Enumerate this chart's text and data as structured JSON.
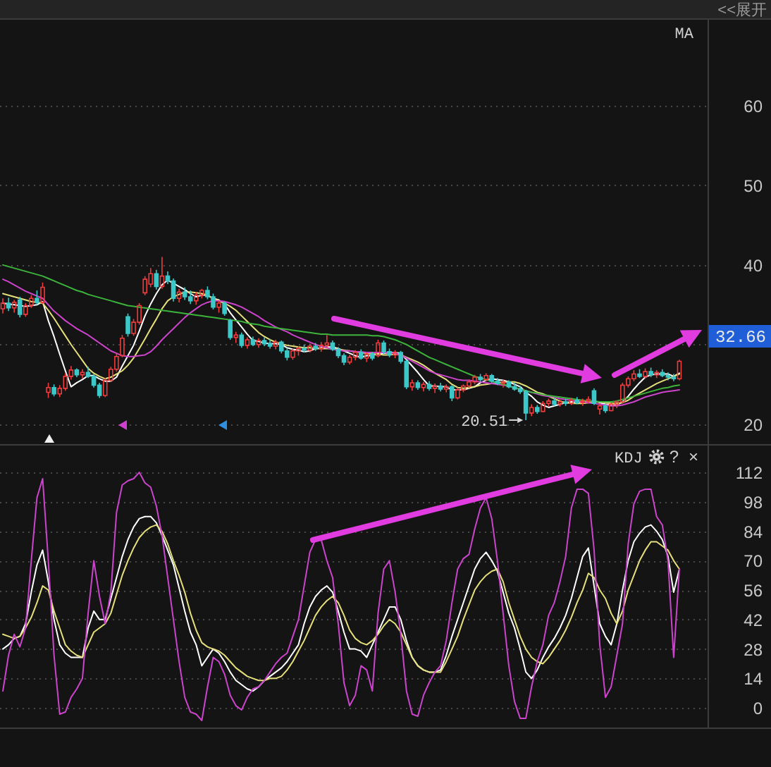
{
  "chart_data": [
    {
      "type": "candlestick",
      "title": "MA",
      "categories": [
        null,
        null,
        null,
        null,
        null,
        null,
        null,
        null,
        null,
        null,
        null,
        null,
        null,
        null,
        null,
        null,
        null,
        null,
        null,
        null,
        null,
        null,
        null,
        null,
        null,
        null,
        null,
        null,
        null,
        null,
        null,
        null,
        null,
        null,
        null,
        null,
        null,
        null,
        null,
        null,
        null,
        null,
        null,
        null,
        null,
        null,
        null,
        null,
        null,
        null,
        null,
        null,
        null,
        null,
        null,
        null,
        null,
        null,
        null,
        null,
        null,
        null,
        null,
        null,
        null,
        null,
        null,
        null,
        null,
        null,
        null,
        null,
        null,
        null,
        null,
        null,
        null,
        null,
        null,
        null,
        null,
        null,
        null,
        null,
        null,
        null,
        null,
        null,
        null,
        null,
        null,
        null,
        null,
        null,
        null,
        null,
        null,
        null,
        null,
        null,
        null,
        null,
        null,
        null,
        null,
        null,
        null,
        null,
        null,
        null,
        null,
        null,
        null,
        null,
        null,
        null,
        null,
        null,
        null,
        null
      ],
      "ohlc": [
        [
          34.5,
          35.8,
          33.9,
          35.2
        ],
        [
          35.2,
          35.9,
          34.2,
          34.6
        ],
        [
          34.6,
          35.6,
          34.0,
          35.3
        ],
        [
          35.6,
          36.0,
          33.4,
          33.8
        ],
        [
          33.8,
          35.2,
          33.5,
          34.9
        ],
        [
          34.9,
          36.2,
          34.6,
          35.8
        ],
        [
          35.8,
          36.8,
          35.0,
          35.3
        ],
        [
          35.3,
          37.8,
          35.1,
          37.2
        ],
        [
          24.0,
          25.2,
          23.3,
          24.6
        ],
        [
          24.6,
          25.0,
          23.5,
          23.8
        ],
        [
          23.8,
          24.9,
          23.4,
          24.5
        ],
        [
          24.5,
          26.4,
          24.2,
          26.0
        ],
        [
          26.0,
          27.3,
          25.6,
          26.8
        ],
        [
          26.8,
          27.0,
          25.9,
          26.2
        ],
        [
          26.2,
          26.9,
          25.7,
          26.5
        ],
        [
          26.5,
          27.2,
          25.8,
          26.0
        ],
        [
          26.0,
          26.3,
          24.6,
          24.9
        ],
        [
          24.9,
          25.2,
          23.3,
          23.6
        ],
        [
          23.6,
          25.8,
          23.4,
          25.5
        ],
        [
          25.5,
          27.2,
          25.3,
          26.9
        ],
        [
          26.9,
          28.9,
          26.6,
          28.5
        ],
        [
          28.6,
          31.2,
          28.4,
          30.8
        ],
        [
          33.5,
          33.9,
          31.0,
          31.4
        ],
        [
          31.4,
          33.2,
          31.1,
          32.8
        ],
        [
          32.8,
          35.2,
          32.5,
          34.9
        ],
        [
          36.5,
          38.6,
          36.2,
          38.2
        ],
        [
          37.6,
          39.6,
          37.2,
          38.9
        ],
        [
          38.9,
          39.4,
          36.9,
          37.3
        ],
        [
          37.3,
          41.0,
          37.0,
          38.6
        ],
        [
          38.6,
          39.2,
          37.6,
          38.0
        ],
        [
          38.0,
          38.3,
          35.4,
          35.8
        ],
        [
          35.8,
          37.0,
          35.3,
          36.6
        ],
        [
          36.6,
          37.2,
          35.6,
          36.0
        ],
        [
          36.0,
          36.8,
          35.1,
          35.5
        ],
        [
          35.5,
          36.6,
          35.0,
          36.2
        ],
        [
          36.2,
          37.0,
          35.8,
          36.8
        ],
        [
          36.8,
          37.3,
          35.7,
          36.0
        ],
        [
          36.0,
          36.4,
          34.4,
          34.7
        ],
        [
          34.7,
          35.5,
          34.0,
          35.2
        ],
        [
          35.2,
          35.4,
          33.6,
          33.9
        ],
        [
          33.0,
          33.2,
          30.6,
          30.9
        ],
        [
          30.9,
          31.6,
          30.2,
          31.2
        ],
        [
          31.2,
          31.5,
          29.6,
          29.9
        ],
        [
          29.9,
          30.9,
          29.5,
          30.6
        ],
        [
          30.6,
          31.0,
          29.8,
          30.0
        ],
        [
          30.0,
          30.8,
          29.6,
          30.5
        ],
        [
          30.5,
          30.9,
          29.8,
          30.1
        ],
        [
          30.1,
          30.7,
          29.5,
          29.8
        ],
        [
          29.8,
          30.6,
          29.4,
          30.3
        ],
        [
          30.3,
          30.5,
          28.9,
          29.2
        ],
        [
          29.2,
          29.6,
          28.0,
          28.4
        ],
        [
          28.4,
          29.5,
          28.1,
          29.2
        ],
        [
          29.2,
          29.8,
          28.6,
          29.5
        ],
        [
          29.5,
          30.0,
          29.0,
          29.3
        ],
        [
          29.3,
          30.1,
          29.0,
          29.8
        ],
        [
          29.8,
          30.2,
          29.2,
          29.5
        ],
        [
          29.5,
          30.3,
          29.1,
          29.9
        ],
        [
          29.9,
          31.2,
          29.6,
          30.2
        ],
        [
          30.2,
          30.5,
          29.2,
          29.4
        ],
        [
          29.4,
          29.7,
          28.3,
          28.6
        ],
        [
          28.6,
          28.9,
          27.4,
          27.8
        ],
        [
          27.8,
          28.7,
          27.5,
          28.4
        ],
        [
          28.4,
          29.3,
          28.0,
          29.0
        ],
        [
          29.0,
          29.4,
          28.1,
          28.3
        ],
        [
          28.3,
          29.0,
          27.8,
          28.8
        ],
        [
          28.8,
          29.1,
          28.0,
          28.3
        ],
        [
          28.6,
          30.6,
          28.4,
          30.2
        ],
        [
          30.2,
          30.5,
          28.8,
          29.1
        ],
        [
          29.1,
          29.5,
          28.4,
          28.7
        ],
        [
          28.7,
          29.3,
          28.3,
          29.0
        ],
        [
          29.0,
          29.2,
          27.6,
          27.9
        ],
        [
          27.9,
          28.1,
          24.4,
          24.7
        ],
        [
          24.7,
          25.6,
          24.2,
          25.2
        ],
        [
          25.2,
          25.5,
          24.3,
          24.6
        ],
        [
          24.6,
          25.3,
          24.1,
          25.0
        ],
        [
          25.0,
          25.4,
          24.2,
          24.5
        ],
        [
          24.5,
          25.1,
          23.9,
          24.8
        ],
        [
          24.8,
          25.2,
          24.1,
          24.4
        ],
        [
          24.4,
          25.0,
          24.0,
          24.7
        ],
        [
          24.7,
          24.9,
          22.9,
          23.3
        ],
        [
          23.3,
          24.6,
          23.1,
          24.3
        ],
        [
          24.3,
          25.0,
          24.0,
          24.8
        ],
        [
          24.8,
          25.6,
          24.5,
          25.3
        ],
        [
          25.3,
          26.2,
          25.0,
          25.9
        ],
        [
          25.9,
          26.3,
          25.3,
          25.6
        ],
        [
          25.6,
          26.4,
          25.4,
          26.1
        ],
        [
          26.1,
          26.3,
          25.2,
          25.4
        ],
        [
          25.4,
          25.8,
          24.9,
          25.1
        ],
        [
          25.1,
          25.6,
          24.6,
          25.3
        ],
        [
          25.3,
          25.5,
          24.5,
          24.7
        ],
        [
          24.7,
          25.2,
          24.2,
          24.4
        ],
        [
          24.4,
          24.8,
          23.8,
          24.1
        ],
        [
          24.1,
          24.3,
          20.51,
          21.4
        ],
        [
          21.4,
          22.5,
          21.0,
          22.1
        ],
        [
          22.1,
          22.4,
          21.3,
          21.6
        ],
        [
          21.6,
          22.9,
          21.5,
          22.6
        ],
        [
          22.6,
          23.2,
          22.2,
          22.9
        ],
        [
          22.9,
          23.3,
          22.3,
          22.5
        ],
        [
          22.5,
          23.1,
          22.2,
          22.8
        ],
        [
          22.8,
          23.2,
          22.3,
          22.6
        ],
        [
          22.6,
          23.3,
          22.4,
          23.0
        ],
        [
          23.0,
          23.4,
          22.5,
          22.7
        ],
        [
          22.7,
          23.2,
          22.3,
          22.9
        ],
        [
          22.9,
          23.5,
          22.6,
          23.1
        ],
        [
          24.2,
          24.5,
          22.4,
          22.6
        ],
        [
          21.9,
          22.6,
          21.2,
          22.3
        ],
        [
          22.3,
          22.6,
          21.4,
          21.7
        ],
        [
          21.7,
          22.7,
          21.6,
          22.5
        ],
        [
          22.5,
          23.0,
          22.0,
          22.8
        ],
        [
          22.8,
          25.2,
          22.6,
          24.9
        ],
        [
          24.9,
          26.0,
          24.6,
          25.7
        ],
        [
          25.7,
          26.8,
          25.4,
          26.3
        ],
        [
          26.3,
          26.9,
          25.8,
          26.0
        ],
        [
          26.0,
          27.0,
          25.7,
          26.6
        ],
        [
          26.6,
          27.1,
          25.9,
          26.2
        ],
        [
          26.2,
          26.8,
          25.8,
          26.5
        ],
        [
          26.5,
          26.9,
          25.9,
          26.1
        ],
        [
          26.1,
          26.5,
          25.5,
          25.9
        ],
        [
          25.9,
          26.3,
          25.4,
          25.7
        ],
        [
          25.7,
          28.1,
          25.5,
          27.9
        ]
      ],
      "colors": [
        "#f03c3c",
        "#3cc8c8",
        "#f03c3c",
        "#3cc8c8",
        "#f03c3c",
        "#f03c3c",
        "#3cc8c8",
        "#f03c3c",
        "#f03c3c",
        "#3cc8c8",
        "#f03c3c",
        "#f03c3c",
        "#f03c3c",
        "#3cc8c8",
        "#f03c3c",
        "#3cc8c8",
        "#3cc8c8",
        "#3cc8c8",
        "#f03c3c",
        "#f03c3c",
        "#f03c3c",
        "#f03c3c",
        "#3cc8c8",
        "#f03c3c",
        "#f03c3c",
        "#f03c3c",
        "#f03c3c",
        "#3cc8c8",
        "#f03c3c",
        "#3cc8c8",
        "#3cc8c8",
        "#f03c3c",
        "#3cc8c8",
        "#3cc8c8",
        "#f03c3c",
        "#f03c3c",
        "#3cc8c8",
        "#3cc8c8",
        "#f03c3c",
        "#3cc8c8",
        "#3cc8c8",
        "#f03c3c",
        "#3cc8c8",
        "#f03c3c",
        "#3cc8c8",
        "#f03c3c",
        "#3cc8c8",
        "#3cc8c8",
        "#f03c3c",
        "#3cc8c8",
        "#3cc8c8",
        "#f03c3c",
        "#f03c3c",
        "#3cc8c8",
        "#f03c3c",
        "#3cc8c8",
        "#f03c3c",
        "#f03c3c",
        "#3cc8c8",
        "#3cc8c8",
        "#3cc8c8",
        "#f03c3c",
        "#f03c3c",
        "#3cc8c8",
        "#f03c3c",
        "#3cc8c8",
        "#f03c3c",
        "#3cc8c8",
        "#3cc8c8",
        "#f03c3c",
        "#3cc8c8",
        "#3cc8c8",
        "#f03c3c",
        "#3cc8c8",
        "#f03c3c",
        "#3cc8c8",
        "#f03c3c",
        "#3cc8c8",
        "#f03c3c",
        "#3cc8c8",
        "#f03c3c",
        "#f03c3c",
        "#f03c3c",
        "#f03c3c",
        "#3cc8c8",
        "#f03c3c",
        "#3cc8c8",
        "#3cc8c8",
        "#f03c3c",
        "#3cc8c8",
        "#3cc8c8",
        "#3cc8c8",
        "#3cc8c8",
        "#f03c3c",
        "#3cc8c8",
        "#f03c3c",
        "#f03c3c",
        "#3cc8c8",
        "#f03c3c",
        "#3cc8c8",
        "#f03c3c",
        "#3cc8c8",
        "#f03c3c",
        "#f03c3c",
        "#3cc8c8",
        "#f03c3c",
        "#3cc8c8",
        "#f03c3c",
        "#f03c3c",
        "#f03c3c",
        "#f03c3c",
        "#f03c3c",
        "#3cc8c8",
        "#f03c3c",
        "#3cc8c8",
        "#f03c3c",
        "#3cc8c8",
        "#3cc8c8",
        "#3cc8c8",
        "#f03c3c"
      ],
      "series": [
        {
          "type": "line",
          "color": "#ffffff",
          "values": [
            35.2,
            35.1,
            35.0,
            34.9,
            34.8,
            34.9,
            35.0,
            35.4,
            33.0,
            31.0,
            28.8,
            26.7,
            24.7,
            25.2,
            25.6,
            26.1,
            26.1,
            25.7,
            25.4,
            25.4,
            25.9,
            27.3,
            28.6,
            29.9,
            31.7,
            33.6,
            35.1,
            36.4,
            37.5,
            38.1,
            37.7,
            37.3,
            36.9,
            36.4,
            36.0,
            36.2,
            36.2,
            35.8,
            35.6,
            35.1,
            34.0,
            33.1,
            32.2,
            31.3,
            30.5,
            30.4,
            30.2,
            30.1,
            30.1,
            30.0,
            29.6,
            29.4,
            29.3,
            29.1,
            29.2,
            29.5,
            29.6,
            29.7,
            29.7,
            29.5,
            29.2,
            28.9,
            28.6,
            28.4,
            28.6,
            28.6,
            28.9,
            28.9,
            29.0,
            29.0,
            28.9,
            28.1,
            27.3,
            26.5,
            25.6,
            24.8,
            24.8,
            24.7,
            24.7,
            24.3,
            24.3,
            24.3,
            24.5,
            24.7,
            25.2,
            25.5,
            25.7,
            25.6,
            25.5,
            25.3,
            25.0,
            24.7,
            24.0,
            23.5,
            22.8,
            22.4,
            22.1,
            22.3,
            22.5,
            22.7,
            22.8,
            22.7,
            22.8,
            22.9,
            22.9,
            22.7,
            22.5,
            22.4,
            22.4,
            22.8,
            23.5,
            24.4,
            25.2,
            25.9,
            26.2,
            26.3,
            26.3,
            26.3,
            26.0,
            26.4
          ]
        },
        {
          "type": "line",
          "color": "#e6e07c",
          "values": [
            36.4,
            36.2,
            36.0,
            35.8,
            35.6,
            35.4,
            35.3,
            35.2,
            34.3,
            33.3,
            32.2,
            31.1,
            30.0,
            29.0,
            28.0,
            27.0,
            26.4,
            26.0,
            25.7,
            25.9,
            26.3,
            26.7,
            27.4,
            28.3,
            29.5,
            30.7,
            32.0,
            33.2,
            34.5,
            35.5,
            36.0,
            36.3,
            36.6,
            36.6,
            36.5,
            36.4,
            36.2,
            35.8,
            35.5,
            35.2,
            34.8,
            34.3,
            33.6,
            32.9,
            32.2,
            31.5,
            31.0,
            30.6,
            30.3,
            30.1,
            29.9,
            29.8,
            29.7,
            29.6,
            29.6,
            29.5,
            29.5,
            29.5,
            29.5,
            29.4,
            29.3,
            29.2,
            29.1,
            29.0,
            28.9,
            28.8,
            28.8,
            28.7,
            28.7,
            28.8,
            28.7,
            28.4,
            28.1,
            27.8,
            27.4,
            26.9,
            26.4,
            26.0,
            25.6,
            25.0,
            24.6,
            24.5,
            24.6,
            24.7,
            24.9,
            25.0,
            25.1,
            25.2,
            25.3,
            25.3,
            25.3,
            25.1,
            24.8,
            24.4,
            24.0,
            23.8,
            23.5,
            23.2,
            22.9,
            22.7,
            22.6,
            22.6,
            22.6,
            22.7,
            22.8,
            22.8,
            22.7,
            22.6,
            22.6,
            22.7,
            23.0,
            23.5,
            23.9,
            24.3,
            24.7,
            25.1,
            25.4,
            25.7,
            26.0,
            26.3
          ]
        },
        {
          "type": "line",
          "color": "#cc44cc",
          "values": [
            38.2,
            37.9,
            37.5,
            37.1,
            36.7,
            36.4,
            36.1,
            35.8,
            35.0,
            34.2,
            33.6,
            33.0,
            32.5,
            32.0,
            31.6,
            31.2,
            30.7,
            30.2,
            29.7,
            29.2,
            28.9,
            28.6,
            28.5,
            28.5,
            28.6,
            28.7,
            29.1,
            29.8,
            30.6,
            31.3,
            32.0,
            32.7,
            33.4,
            34.0,
            34.5,
            35.0,
            35.3,
            35.5,
            35.5,
            35.4,
            35.2,
            35.0,
            34.7,
            34.3,
            33.9,
            33.5,
            33.0,
            32.6,
            32.2,
            31.9,
            31.6,
            31.2,
            30.9,
            30.6,
            30.3,
            30.0,
            29.8,
            29.6,
            29.4,
            29.3,
            29.2,
            29.2,
            29.1,
            29.1,
            29.0,
            29.0,
            29.0,
            29.0,
            29.0,
            28.9,
            28.7,
            28.3,
            27.9,
            27.5,
            27.1,
            26.7,
            26.4,
            26.2,
            26.0,
            25.8,
            25.6,
            25.5,
            25.5,
            25.4,
            25.3,
            25.2,
            25.1,
            25.0,
            24.9,
            24.8,
            24.6,
            24.4,
            24.2,
            24.0,
            23.8,
            23.6,
            23.5,
            23.4,
            23.2,
            23.1,
            23.0,
            22.9,
            22.8,
            22.7,
            22.6,
            22.5,
            22.4,
            22.3,
            22.3,
            22.4,
            22.6,
            22.8,
            23.1,
            23.4,
            23.6,
            23.8,
            24.0,
            24.1,
            24.2,
            24.3
          ]
        },
        {
          "type": "line",
          "color": "#3cb43c",
          "values": [
            40.0,
            39.8,
            39.6,
            39.4,
            39.2,
            39.0,
            38.8,
            38.6,
            38.3,
            38.0,
            37.7,
            37.4,
            37.1,
            36.8,
            36.6,
            36.3,
            36.1,
            35.9,
            35.7,
            35.5,
            35.3,
            35.1,
            34.9,
            34.8,
            34.7,
            34.6,
            34.5,
            34.4,
            34.3,
            34.2,
            34.1,
            34.0,
            33.9,
            33.8,
            33.7,
            33.6,
            33.5,
            33.4,
            33.3,
            33.2,
            33.1,
            33.0,
            32.9,
            32.7,
            32.6,
            32.5,
            32.3,
            32.2,
            32.1,
            32.0,
            31.9,
            31.8,
            31.7,
            31.6,
            31.5,
            31.4,
            31.3,
            31.3,
            31.2,
            31.2,
            31.2,
            31.2,
            31.2,
            31.2,
            31.2,
            31.1,
            31.1,
            31.0,
            30.8,
            30.6,
            30.3,
            30.0,
            29.6,
            29.2,
            28.8,
            28.4,
            28.1,
            27.8,
            27.5,
            27.2,
            26.9,
            26.6,
            26.3,
            26.0,
            25.8,
            25.6,
            25.4,
            25.2,
            25.0,
            24.8,
            24.6,
            24.4,
            24.2,
            24.0,
            23.9,
            23.7,
            23.6,
            23.5,
            23.4,
            23.3,
            23.2,
            23.1,
            23.0,
            22.9,
            22.9,
            22.8,
            22.8,
            22.8,
            22.9,
            23.1,
            23.3,
            23.5,
            23.7,
            23.9,
            24.1,
            24.3,
            24.5,
            24.6,
            24.8,
            24.9
          ]
        }
      ],
      "ylim": [
        17.4,
        70.9
      ],
      "yticks": [
        20,
        {
          "value": 30,
          "label": null
        },
        40,
        50,
        60
      ],
      "grid": "y",
      "tick_labels": "y",
      "annotations": [
        "<<展开",
        "20.51",
        "32.66"
      ]
    },
    {
      "type": "line",
      "title": "KDJ",
      "categories": [
        null,
        null,
        null,
        null,
        null,
        null,
        null,
        null,
        null,
        null,
        null,
        null,
        null,
        null,
        null,
        null,
        null,
        null,
        null,
        null,
        null,
        null,
        null,
        null,
        null,
        null,
        null,
        null,
        null,
        null,
        null,
        null,
        null,
        null,
        null,
        null,
        null,
        null,
        null,
        null,
        null,
        null,
        null,
        null,
        null,
        null,
        null,
        null,
        null,
        null,
        null,
        null,
        null,
        null,
        null,
        null,
        null,
        null,
        null,
        null,
        null,
        null,
        null,
        null,
        null,
        null,
        null,
        null,
        null,
        null,
        null,
        null,
        null,
        null,
        null,
        null,
        null,
        null,
        null,
        null,
        null,
        null,
        null,
        null,
        null,
        null,
        null,
        null,
        null,
        null,
        null,
        null,
        null,
        null,
        null,
        null,
        null,
        null,
        null,
        null,
        null,
        null,
        null,
        null,
        null,
        null,
        null,
        null,
        null,
        null,
        null,
        null,
        null,
        null,
        null,
        null,
        null,
        null,
        null,
        null
      ],
      "series": [
        {
          "type": "line",
          "color": "#ffffff",
          "values": [
            28,
            30,
            33,
            34,
            40,
            55,
            68,
            75,
            60,
            42,
            30,
            26,
            24,
            24,
            24,
            38,
            46,
            42,
            42,
            52,
            62,
            72,
            80,
            86,
            90,
            91,
            91,
            88,
            82,
            75,
            68,
            57,
            46,
            36,
            30,
            20,
            24,
            28,
            26,
            22,
            17,
            13,
            11,
            9,
            8,
            10,
            13,
            15,
            17,
            19,
            22,
            26,
            30,
            40,
            48,
            53,
            56,
            58,
            55,
            46,
            36,
            28,
            28,
            27,
            24,
            30,
            36,
            42,
            48,
            48,
            42,
            32,
            24,
            20,
            18,
            17,
            17,
            18,
            25,
            34,
            42,
            50,
            58,
            66,
            71,
            74,
            70,
            65,
            55,
            45,
            38,
            28,
            17,
            14,
            18,
            24,
            29,
            33,
            38,
            44,
            52,
            62,
            72,
            76,
            58,
            40,
            34,
            30,
            40,
            56,
            70,
            79,
            83,
            86,
            87,
            84,
            80,
            72,
            55,
            66
          ]
        },
        {
          "type": "line",
          "color": "#e6e07c",
          "values": [
            35,
            34,
            33,
            34,
            38,
            43,
            50,
            58,
            56,
            46,
            38,
            30,
            27,
            25,
            24,
            30,
            36,
            38,
            40,
            45,
            54,
            63,
            70,
            76,
            81,
            84,
            86,
            87,
            84,
            78,
            70,
            63,
            55,
            45,
            37,
            31,
            29,
            28,
            27,
            25,
            22,
            19,
            17,
            15,
            14,
            13,
            13,
            14,
            14,
            15,
            18,
            22,
            27,
            32,
            38,
            44,
            48,
            51,
            53,
            50,
            44,
            37,
            33,
            31,
            30,
            32,
            35,
            39,
            42,
            40,
            36,
            30,
            24,
            20,
            18,
            17,
            17,
            17,
            22,
            28,
            34,
            42,
            49,
            56,
            60,
            63,
            65,
            66,
            60,
            50,
            42,
            34,
            28,
            24,
            22,
            21,
            24,
            28,
            32,
            37,
            43,
            50,
            56,
            64,
            62,
            56,
            52,
            45,
            40,
            46,
            56,
            63,
            70,
            75,
            79,
            79,
            77,
            75,
            70,
            66
          ]
        },
        {
          "type": "line",
          "color": "#cc44cc",
          "values": [
            8,
            25,
            35,
            29,
            38,
            70,
            100,
            109,
            70,
            25,
            -3,
            -2,
            5,
            9,
            14,
            45,
            70,
            53,
            40,
            55,
            93,
            106,
            108,
            109,
            112,
            107,
            105,
            96,
            82,
            62,
            42,
            22,
            5,
            -2,
            -3,
            -6,
            10,
            24,
            22,
            16,
            6,
            1,
            -1,
            5,
            9,
            10,
            13,
            17,
            21,
            24,
            26,
            34,
            42,
            58,
            74,
            80,
            80,
            70,
            62,
            40,
            12,
            1,
            6,
            20,
            18,
            8,
            45,
            66,
            70,
            55,
            35,
            8,
            -3,
            -4,
            6,
            12,
            17,
            20,
            32,
            50,
            66,
            71,
            73,
            85,
            95,
            100,
            90,
            70,
            45,
            20,
            3,
            -5,
            -5,
            10,
            22,
            30,
            44,
            50,
            60,
            72,
            95,
            104,
            104,
            102,
            75,
            30,
            5,
            10,
            25,
            40,
            78,
            97,
            103,
            104,
            104,
            91,
            87,
            70,
            24,
            66
          ]
        }
      ],
      "ylim": [
        -9.7,
        125.1
      ],
      "yticks": [
        0,
        14,
        28,
        42,
        56,
        70,
        84,
        98,
        112
      ],
      "grid": "y",
      "tick_labels": "y",
      "annotations": [
        "?",
        "×"
      ]
    }
  ]
}
